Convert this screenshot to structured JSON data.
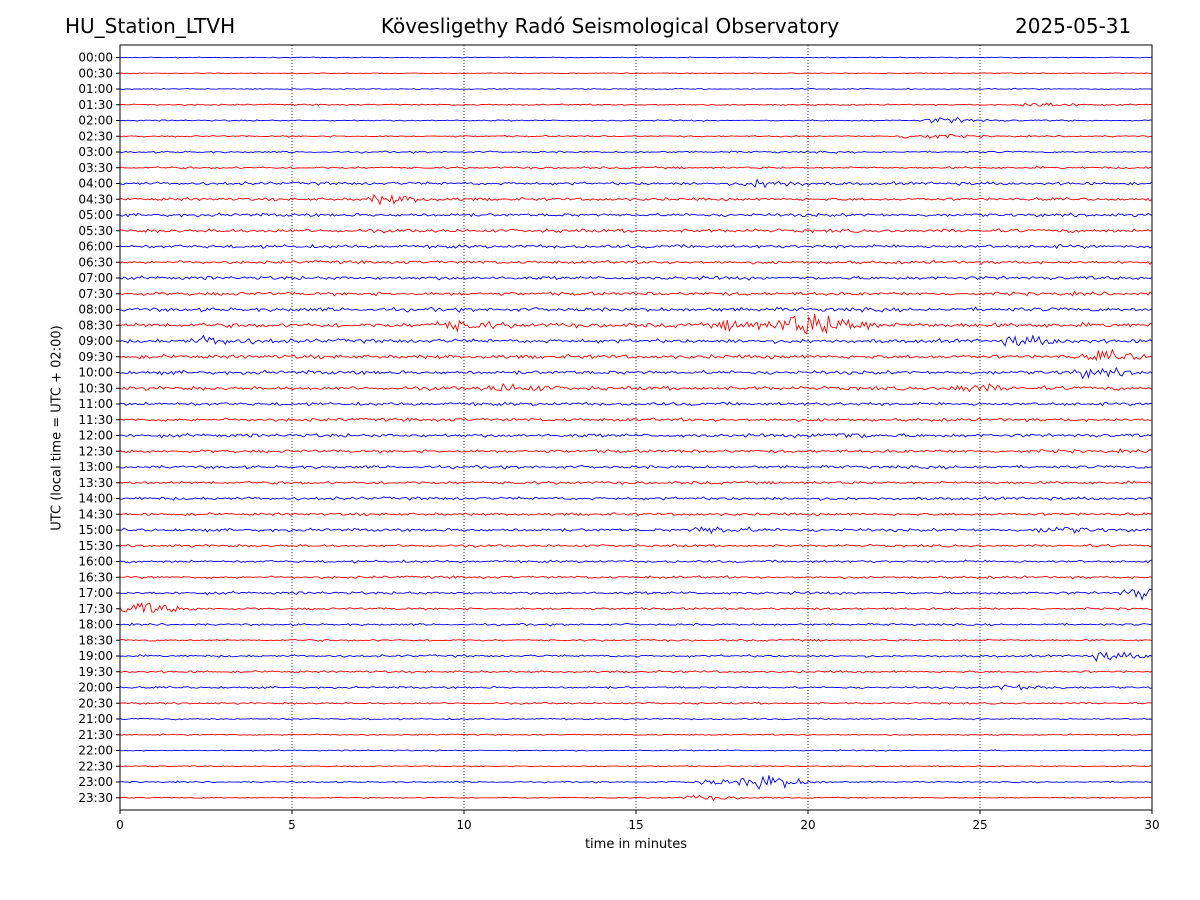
{
  "header": {
    "station": "HU_Station_LTVH",
    "observatory": "Kövesligethy Radó Seismological Observatory",
    "date": "2025-05-31"
  },
  "chart_data": {
    "type": "line",
    "title": "Kövesligethy Radó Seismological Observatory",
    "xlabel": "time in minutes",
    "ylabel": "UTC (local time = UTC + 02:00)",
    "xlim": [
      0,
      30
    ],
    "xticks": [
      "0",
      "5",
      "10",
      "15",
      "20",
      "25",
      "30"
    ],
    "xgrid_minutes": [
      5,
      10,
      15,
      20,
      25
    ],
    "colors": [
      "#0000ff",
      "#ff0000"
    ],
    "rows": [
      "00:00",
      "00:30",
      "01:00",
      "01:30",
      "02:00",
      "02:30",
      "03:00",
      "03:30",
      "04:00",
      "04:30",
      "05:00",
      "05:30",
      "06:00",
      "06:30",
      "07:00",
      "07:30",
      "08:00",
      "08:30",
      "09:00",
      "09:30",
      "10:00",
      "10:30",
      "11:00",
      "11:30",
      "12:00",
      "12:30",
      "13:00",
      "13:30",
      "14:00",
      "14:30",
      "15:00",
      "15:30",
      "16:00",
      "16:30",
      "17:00",
      "17:30",
      "18:00",
      "18:30",
      "19:00",
      "19:30",
      "20:00",
      "20:30",
      "21:00",
      "21:30",
      "22:00",
      "22:30",
      "23:00",
      "23:30"
    ],
    "noise_levels": [
      0.4,
      0.4,
      0.5,
      0.6,
      0.6,
      0.7,
      0.8,
      1.0,
      1.3,
      1.3,
      1.4,
      1.5,
      1.5,
      1.4,
      1.5,
      1.5,
      1.7,
      2.0,
      1.7,
      1.7,
      1.6,
      1.6,
      1.4,
      1.4,
      1.5,
      1.4,
      1.3,
      1.3,
      1.3,
      1.2,
      1.3,
      1.1,
      1.1,
      1.1,
      1.2,
      1.0,
      0.9,
      0.9,
      1.0,
      1.0,
      0.9,
      0.8,
      0.7,
      0.6,
      0.5,
      0.5,
      0.6,
      0.5
    ],
    "events": [
      {
        "row": "01:30",
        "minute": 26.5,
        "amp": 2.5
      },
      {
        "row": "02:00",
        "minute": 23.8,
        "amp": 2.5
      },
      {
        "row": "02:30",
        "minute": 23.0,
        "amp": 2.5
      },
      {
        "row": "04:00",
        "minute": 18.5,
        "amp": 3.0
      },
      {
        "row": "04:30",
        "minute": 7.5,
        "amp": 3.5
      },
      {
        "row": "08:30",
        "minute": 9.5,
        "amp": 4.0
      },
      {
        "row": "08:30",
        "minute": 17.8,
        "amp": 4.0
      },
      {
        "row": "08:30",
        "minute": 19.5,
        "amp": 9.0
      },
      {
        "row": "08:30",
        "minute": 20.5,
        "amp": 5.5
      },
      {
        "row": "09:00",
        "minute": 2.5,
        "amp": 3.0
      },
      {
        "row": "09:00",
        "minute": 26.0,
        "amp": 3.5
      },
      {
        "row": "09:30",
        "minute": 28.5,
        "amp": 3.5
      },
      {
        "row": "10:00",
        "minute": 28.0,
        "amp": 3.0
      },
      {
        "row": "10:30",
        "minute": 11.0,
        "amp": 3.0
      },
      {
        "row": "10:30",
        "minute": 24.5,
        "amp": 3.0
      },
      {
        "row": "12:00",
        "minute": 20.5,
        "amp": 2.5
      },
      {
        "row": "15:00",
        "minute": 17.0,
        "amp": 3.0
      },
      {
        "row": "15:00",
        "minute": 27.0,
        "amp": 2.5
      },
      {
        "row": "17:00",
        "minute": 29.5,
        "amp": 5.0
      },
      {
        "row": "17:30",
        "minute": 0.3,
        "amp": 5.5
      },
      {
        "row": "19:00",
        "minute": 28.5,
        "amp": 3.0
      },
      {
        "row": "20:00",
        "minute": 25.8,
        "amp": 2.5
      },
      {
        "row": "23:00",
        "minute": 17.0,
        "amp": 2.5
      },
      {
        "row": "23:00",
        "minute": 18.5,
        "amp": 6.5
      },
      {
        "row": "23:30",
        "minute": 16.7,
        "amp": 2.0
      }
    ]
  }
}
